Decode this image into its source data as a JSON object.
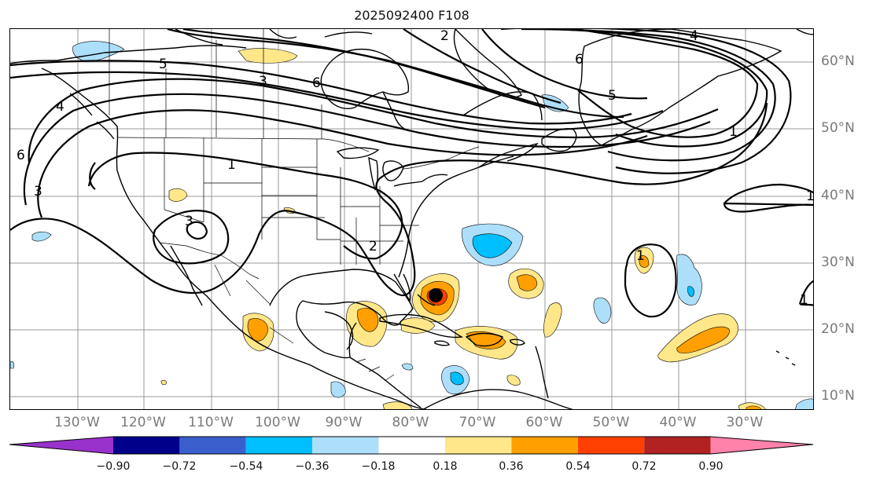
{
  "title": "2025092400 F108",
  "longitude_labels": [
    "130°W",
    "120°W",
    "110°W",
    "100°W",
    "90°W",
    "80°W",
    "70°W",
    "60°W",
    "50°W",
    "40°W",
    "30°W"
  ],
  "latitude_labels": [
    "60°N",
    "50°N",
    "40°N",
    "30°N",
    "20°N",
    "10°N"
  ],
  "contour_labels": [
    "5",
    "3",
    "6",
    "4",
    "3",
    "2",
    "4",
    "6",
    "5",
    "1",
    "6",
    "1",
    "3",
    "2",
    "1",
    "1",
    "1"
  ],
  "colorbar": {
    "ticks": [
      "−0.90",
      "−0.72",
      "−0.54",
      "−0.36",
      "−0.18",
      "0.18",
      "0.36",
      "0.54",
      "0.72",
      "0.90"
    ],
    "colors": {
      "lt_neg090": "#9932CC",
      "neg090_neg072": "#00008B",
      "neg072_neg054": "#3A5FCD",
      "neg054_neg036": "#00BFFF",
      "neg036_neg018": "#ADDFFA",
      "neg018_018": "#FFFFFF",
      "p018_036": "#FFE78A",
      "p036_054": "#FFA000",
      "p054_072": "#FF4000",
      "p072_090": "#B22222",
      "gt_090": "#FF82AB"
    }
  },
  "storm_marker_color": "#000000"
}
